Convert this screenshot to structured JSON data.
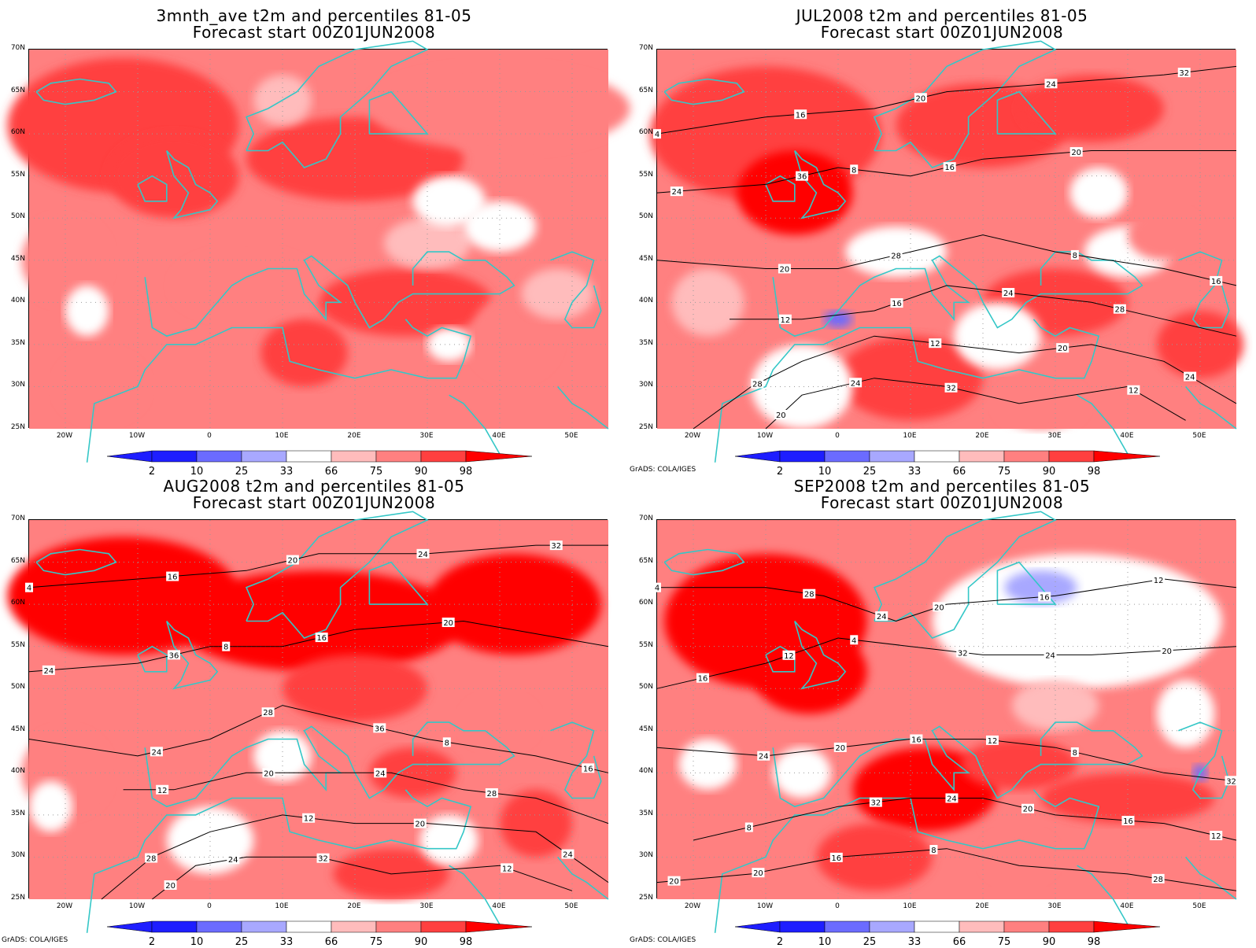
{
  "palette": {
    "blue_strong": "#1e1eff",
    "blue_mid": "#6b6bff",
    "blue_light": "#a8a8ff",
    "white": "#ffffff",
    "red_light": "#ffbcbc",
    "red_mid": "#ff8080",
    "red_strong": "#ff4040",
    "red_full": "#ff0000",
    "coast": "#34c7c7",
    "contour": "#000000"
  },
  "axes": {
    "lat_labels": [
      "70N",
      "65N",
      "60N",
      "55N",
      "50N",
      "45N",
      "40N",
      "35N",
      "30N",
      "25N"
    ],
    "lon_labels": [
      "20W",
      "10W",
      "0",
      "10E",
      "20E",
      "30E",
      "40E",
      "50E"
    ],
    "lat_range": [
      25,
      70
    ],
    "lon_range": [
      -25,
      55
    ]
  },
  "colorbar": {
    "labels": [
      "2",
      "10",
      "25",
      "33",
      "66",
      "75",
      "90",
      "98"
    ]
  },
  "panels": [
    {
      "id": "p1",
      "title": "3mnth_ave t2m and percentiles 81-05",
      "subtitle": "Forecast start 00Z01JUN2008",
      "credit": "",
      "contour_labels": []
    },
    {
      "id": "p2",
      "title": "JUL2008 t2m and percentiles 81-05",
      "subtitle": "Forecast start 00Z01JUN2008",
      "credit": "GrADS: COLA/IGES",
      "contour_labels": [
        "4",
        "8",
        "8",
        "12",
        "12",
        "12",
        "16",
        "16",
        "16",
        "16",
        "20",
        "20",
        "20",
        "20",
        "20",
        "24",
        "24",
        "24",
        "24",
        "24",
        "28",
        "28",
        "28",
        "32",
        "32",
        "36"
      ]
    },
    {
      "id": "p3",
      "title": "AUG2008 t2m and percentiles 81-05",
      "subtitle": "Forecast start 00Z01JUN2008",
      "credit": "GrADS: COLA/IGES",
      "contour_labels": [
        "4",
        "8",
        "8",
        "12",
        "12",
        "12",
        "16",
        "16",
        "16",
        "20",
        "20",
        "20",
        "20",
        "20",
        "24",
        "24",
        "24",
        "24",
        "24",
        "24",
        "28",
        "28",
        "28",
        "32",
        "32",
        "36",
        "36"
      ]
    },
    {
      "id": "p4",
      "title": "SEP2008 t2m and percentiles 81-05",
      "subtitle": "Forecast start 00Z01JUN2008",
      "credit": "GrADS: COLA/IGES",
      "contour_labels": [
        "4",
        "4",
        "8",
        "8",
        "8",
        "12",
        "12",
        "12",
        "12",
        "16",
        "16",
        "16",
        "16",
        "16",
        "20",
        "20",
        "20",
        "20",
        "20",
        "20",
        "24",
        "24",
        "24",
        "24",
        "28",
        "28",
        "32",
        "32",
        "32"
      ]
    }
  ]
}
